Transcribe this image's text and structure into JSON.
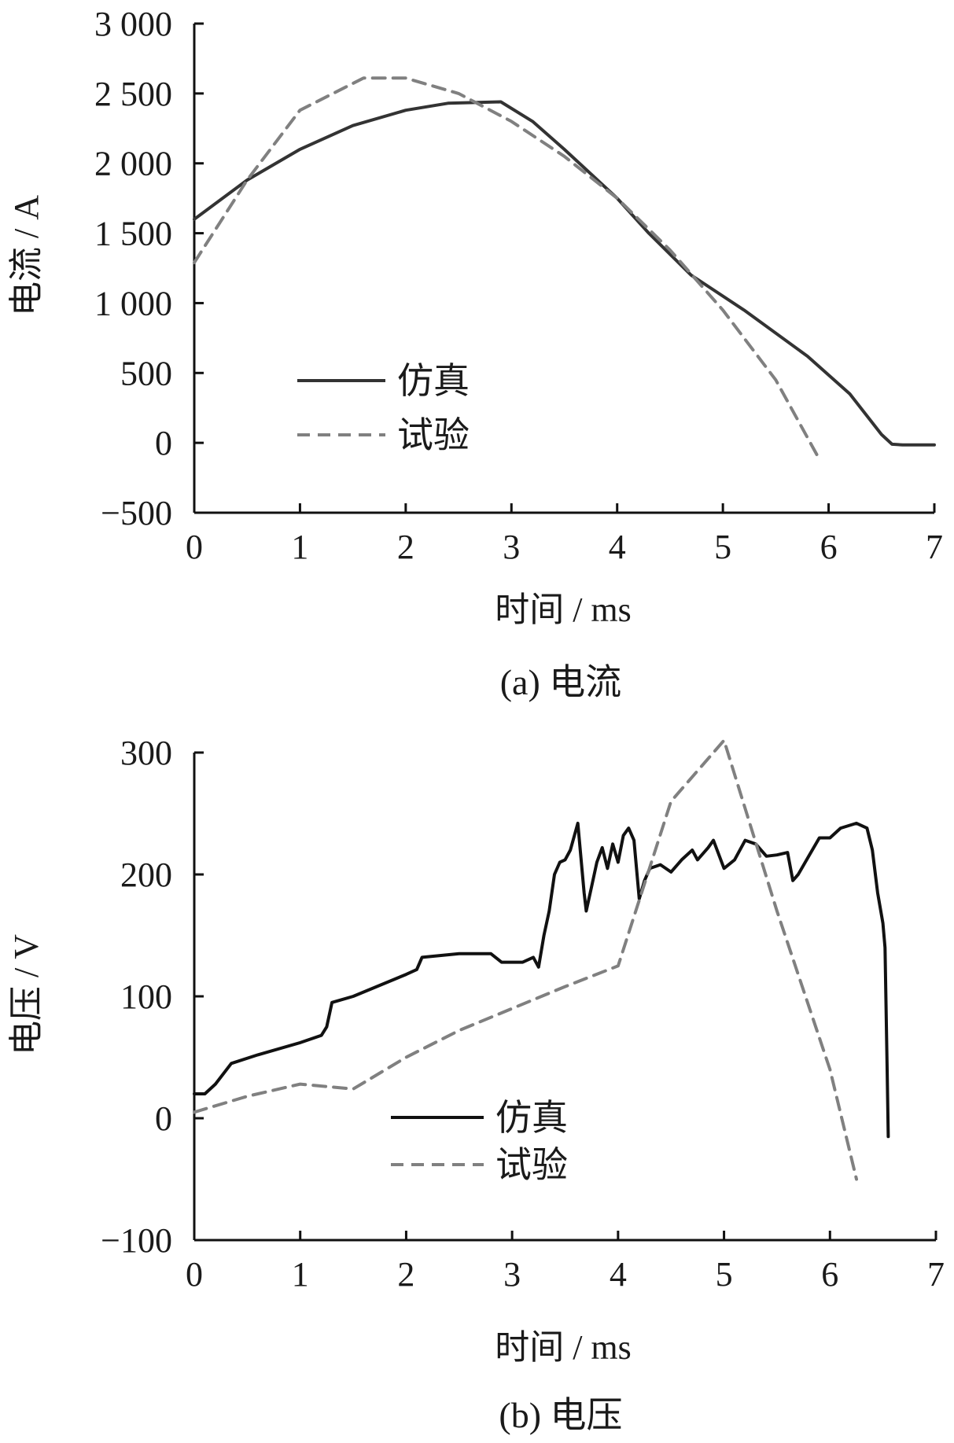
{
  "chart_data": [
    {
      "type": "line",
      "title": "",
      "caption": "(a)  电流",
      "xlabel": "时间 / ms",
      "ylabel": "电流 / A",
      "xlim": [
        0,
        7
      ],
      "ylim": [
        -500,
        3000
      ],
      "x_ticks": [
        "0",
        "1",
        "2",
        "3",
        "4",
        "5",
        "6",
        "7"
      ],
      "x_tick_values": [
        0,
        1,
        2,
        3,
        4,
        5,
        6,
        7
      ],
      "y_ticks": [
        "−500",
        "0",
        "500",
        "1 000",
        "1 500",
        "2 000",
        "2 500",
        "3 000"
      ],
      "y_tick_values": [
        -500,
        0,
        500,
        1000,
        1500,
        2000,
        2500,
        3000
      ],
      "grid": false,
      "legend_position": "lower-left",
      "series": [
        {
          "name": "仿真",
          "style": "solid",
          "color": "#333333",
          "points": [
            [
              0,
              1600
            ],
            [
              0.5,
              1880
            ],
            [
              1,
              2100
            ],
            [
              1.5,
              2270
            ],
            [
              2,
              2380
            ],
            [
              2.4,
              2430
            ],
            [
              2.9,
              2440
            ],
            [
              3.2,
              2300
            ],
            [
              3.5,
              2100
            ],
            [
              4,
              1750
            ],
            [
              4.3,
              1500
            ],
            [
              4.7,
              1200
            ],
            [
              5.2,
              950
            ],
            [
              5.8,
              620
            ],
            [
              6.2,
              350
            ],
            [
              6.5,
              60
            ],
            [
              6.6,
              -10
            ],
            [
              6.7,
              -15
            ],
            [
              7,
              -15
            ]
          ]
        },
        {
          "name": "试验",
          "style": "dashed",
          "color": "#808080",
          "points": [
            [
              0,
              1290
            ],
            [
              0.5,
              1880
            ],
            [
              1,
              2380
            ],
            [
              1.6,
              2610
            ],
            [
              2,
              2610
            ],
            [
              2.5,
              2500
            ],
            [
              3,
              2300
            ],
            [
              3.5,
              2050
            ],
            [
              4,
              1750
            ],
            [
              4.5,
              1380
            ],
            [
              5,
              950
            ],
            [
              5.5,
              450
            ],
            [
              5.9,
              -100
            ]
          ]
        }
      ]
    },
    {
      "type": "line",
      "title": "",
      "caption": "(b)  电压",
      "xlabel": "时间 / ms",
      "ylabel": "电压 / V",
      "xlim": [
        0,
        7
      ],
      "ylim": [
        -100,
        300
      ],
      "x_ticks": [
        "0",
        "1",
        "2",
        "3",
        "4",
        "5",
        "6",
        "7"
      ],
      "x_tick_values": [
        0,
        1,
        2,
        3,
        4,
        5,
        6,
        7
      ],
      "y_ticks": [
        "−100",
        "0",
        "100",
        "200",
        "300"
      ],
      "y_tick_values": [
        -100,
        0,
        100,
        200,
        300
      ],
      "grid": false,
      "legend_position": "lower-center",
      "series": [
        {
          "name": "仿真",
          "style": "solid",
          "color": "#111111",
          "points": [
            [
              0,
              20
            ],
            [
              0.1,
              20
            ],
            [
              0.2,
              28
            ],
            [
              0.35,
              45
            ],
            [
              0.6,
              52
            ],
            [
              1,
              62
            ],
            [
              1.2,
              68
            ],
            [
              1.25,
              75
            ],
            [
              1.3,
              95
            ],
            [
              1.5,
              100
            ],
            [
              2,
              118
            ],
            [
              2.1,
              122
            ],
            [
              2.15,
              132
            ],
            [
              2.5,
              135
            ],
            [
              2.8,
              135
            ],
            [
              2.9,
              128
            ],
            [
              3.1,
              128
            ],
            [
              3.2,
              132
            ],
            [
              3.25,
              124
            ],
            [
              3.3,
              150
            ],
            [
              3.35,
              170
            ],
            [
              3.4,
              200
            ],
            [
              3.45,
              210
            ],
            [
              3.5,
              212
            ],
            [
              3.55,
              220
            ],
            [
              3.62,
              242
            ],
            [
              3.68,
              185
            ],
            [
              3.7,
              170
            ],
            [
              3.75,
              190
            ],
            [
              3.8,
              210
            ],
            [
              3.85,
              222
            ],
            [
              3.9,
              205
            ],
            [
              3.95,
              225
            ],
            [
              4,
              210
            ],
            [
              4.05,
              232
            ],
            [
              4.1,
              238
            ],
            [
              4.15,
              228
            ],
            [
              4.2,
              180
            ],
            [
              4.25,
              195
            ],
            [
              4.3,
              205
            ],
            [
              4.4,
              208
            ],
            [
              4.5,
              202
            ],
            [
              4.6,
              212
            ],
            [
              4.7,
              220
            ],
            [
              4.75,
              212
            ],
            [
              4.85,
              222
            ],
            [
              4.9,
              228
            ],
            [
              5,
              205
            ],
            [
              5.1,
              212
            ],
            [
              5.2,
              228
            ],
            [
              5.3,
              225
            ],
            [
              5.4,
              215
            ],
            [
              5.5,
              216
            ],
            [
              5.6,
              218
            ],
            [
              5.65,
              195
            ],
            [
              5.7,
              200
            ],
            [
              5.8,
              215
            ],
            [
              5.9,
              230
            ],
            [
              6,
              230
            ],
            [
              6.1,
              238
            ],
            [
              6.25,
              242
            ],
            [
              6.35,
              238
            ],
            [
              6.4,
              220
            ],
            [
              6.45,
              185
            ],
            [
              6.5,
              160
            ],
            [
              6.52,
              140
            ],
            [
              6.54,
              40
            ],
            [
              6.55,
              -15
            ]
          ]
        },
        {
          "name": "试验",
          "style": "dashed",
          "color": "#808080",
          "points": [
            [
              0,
              5
            ],
            [
              0.5,
              18
            ],
            [
              1,
              28
            ],
            [
              1.5,
              24
            ],
            [
              2,
              50
            ],
            [
              2.5,
              72
            ],
            [
              3,
              90
            ],
            [
              3.5,
              108
            ],
            [
              4,
              125
            ],
            [
              4.5,
              260
            ],
            [
              5,
              310
            ],
            [
              5.5,
              170
            ],
            [
              6,
              40
            ],
            [
              6.25,
              -50
            ]
          ]
        }
      ]
    }
  ]
}
